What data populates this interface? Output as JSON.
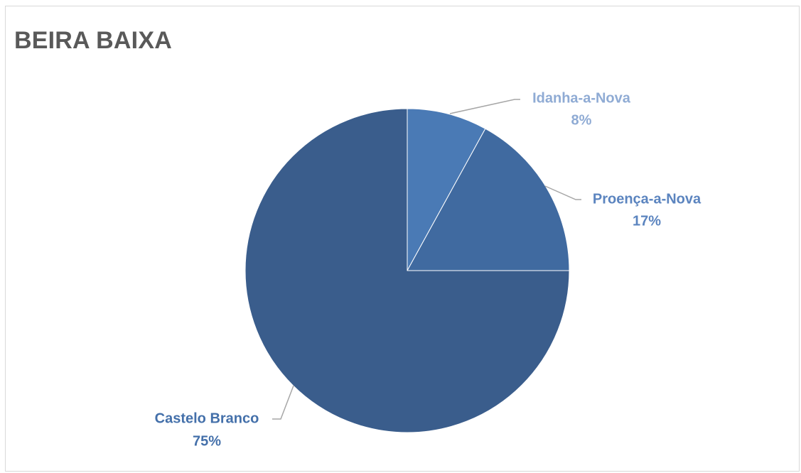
{
  "title": "BEIRA BAIXA",
  "chart_data": {
    "type": "pie",
    "title": "BEIRA BAIXA",
    "start_angle": "12 o'clock, clockwise",
    "legend": "none",
    "slices": [
      {
        "name": "Idanha-a-Nova",
        "value": 8,
        "label": "8%",
        "color": "#4a7ab5",
        "label_color": "#8fabd4"
      },
      {
        "name": "Proença-a-Nova",
        "value": 17,
        "label": "17%",
        "color": "#406aa0",
        "label_color": "#5b84bf"
      },
      {
        "name": "Castelo Branco",
        "value": 75,
        "label": "75%",
        "color": "#3a5d8c",
        "label_color": "#4470aa"
      }
    ]
  }
}
